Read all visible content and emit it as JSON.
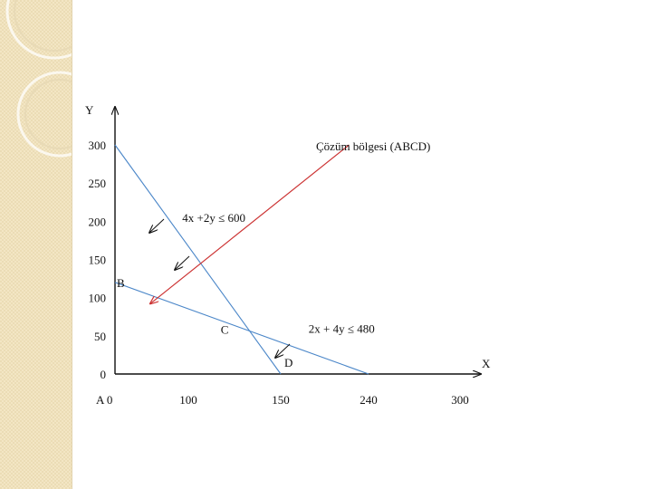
{
  "slide": {
    "accent_color": "#e8dab6",
    "panel_color": "#f3e6c4"
  },
  "chart_data": {
    "type": "line",
    "title": "",
    "xlabel": "X",
    "ylabel": "Y",
    "origin_label": "A 0",
    "x_ticks": [
      {
        "value": 100,
        "label": "100"
      },
      {
        "value": 150,
        "label": "150"
      },
      {
        "value": 240,
        "label": "240"
      },
      {
        "value": 300,
        "label": "300"
      }
    ],
    "y_ticks": [
      {
        "value": 0,
        "label": "0"
      },
      {
        "value": 50,
        "label": "50"
      },
      {
        "value": 100,
        "label": "100"
      },
      {
        "value": 150,
        "label": "150"
      },
      {
        "value": 200,
        "label": "200"
      },
      {
        "value": 250,
        "label": "250"
      },
      {
        "value": 300,
        "label": "300"
      }
    ],
    "series": [
      {
        "x": [
          0,
          150
        ],
        "y": [
          300,
          0
        ],
        "color": "#4a86c8"
      },
      {
        "x": [
          0,
          240
        ],
        "y": [
          120,
          0
        ],
        "color": "#4a86c8"
      }
    ],
    "points": [
      {
        "label": "B",
        "x": 0,
        "y": 120
      },
      {
        "label": "C",
        "x": 120,
        "y": 60
      },
      {
        "label": "D",
        "x": 150,
        "y": 0
      }
    ],
    "constraints": [
      {
        "label": "4x +2y ≤ 600",
        "x": 67,
        "y": 205
      },
      {
        "label": "2x + 4y ≤ 480",
        "x": 160,
        "y": 60
      }
    ],
    "annotation": {
      "label": "Çözüm bölgesi (ABCD)",
      "color": "#cc3333",
      "from": [
        220,
        300
      ],
      "to": [
        48,
        92
      ]
    },
    "xlim": [
      0,
      300
    ],
    "ylim": [
      0,
      300
    ]
  }
}
